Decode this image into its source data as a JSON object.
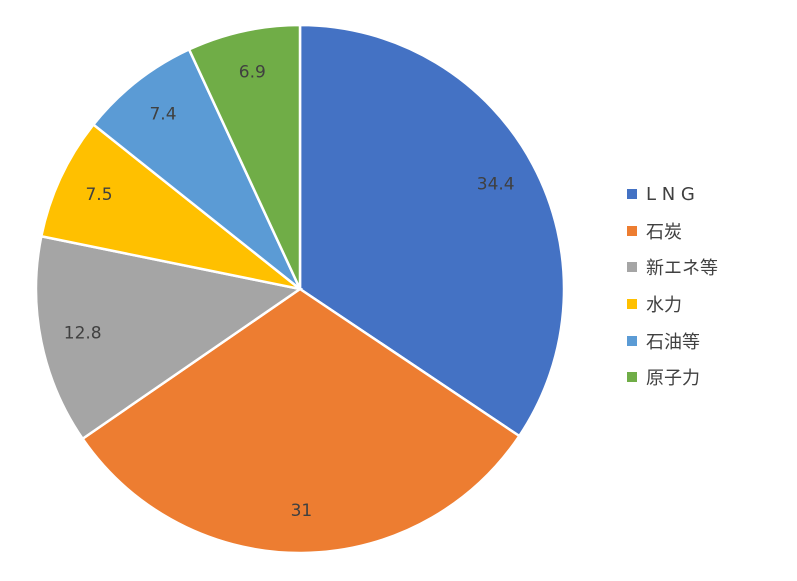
{
  "chart_data": {
    "type": "pie",
    "title": "",
    "legend_position": "right",
    "start_angle_deg": 0,
    "direction": "clockwise",
    "categories": [
      "L N G",
      "石炭",
      "新エネ等",
      "水力",
      "石油等",
      "原子力"
    ],
    "values": [
      34.4,
      31,
      12.8,
      7.5,
      7.4,
      6.9
    ],
    "labels": [
      "34.4",
      "31",
      "12.8",
      "7.5",
      "7.4",
      "6.9"
    ],
    "colors": [
      "#4472C4",
      "#ED7D31",
      "#A5A5A5",
      "#FFC000",
      "#5B9BD5",
      "#70AD47"
    ]
  }
}
